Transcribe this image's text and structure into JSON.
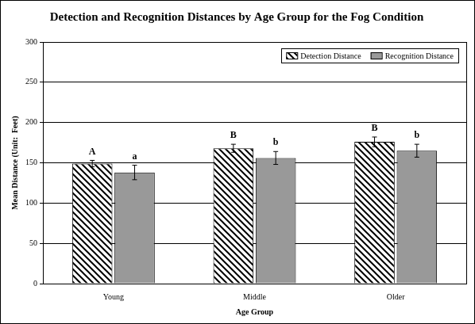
{
  "chart_data": {
    "type": "bar",
    "title": "Detection and Recognition Distances by Age Group for the Fog Condition",
    "x_label": "Age Group",
    "y_label": "Mean Distance (Unit:  Feet)",
    "categories": [
      "Young",
      "Middle",
      "Older"
    ],
    "series": [
      {
        "name": "Detection Distance",
        "color": "#000000",
        "values": [
          149,
          168,
          176
        ],
        "errors": [
          4,
          5,
          6
        ],
        "annotations": [
          "A",
          "B",
          "B"
        ]
      },
      {
        "name": "Recognition Distance",
        "color": "#999999",
        "values": [
          138,
          156,
          165
        ],
        "errors": [
          9,
          8,
          8
        ],
        "annotations": [
          "a",
          "b",
          "b"
        ]
      }
    ],
    "ylim": [
      0,
      300
    ],
    "yticks": [
      0,
      50,
      100,
      150,
      200,
      250,
      300
    ],
    "grid": true,
    "legend": "upper right"
  }
}
